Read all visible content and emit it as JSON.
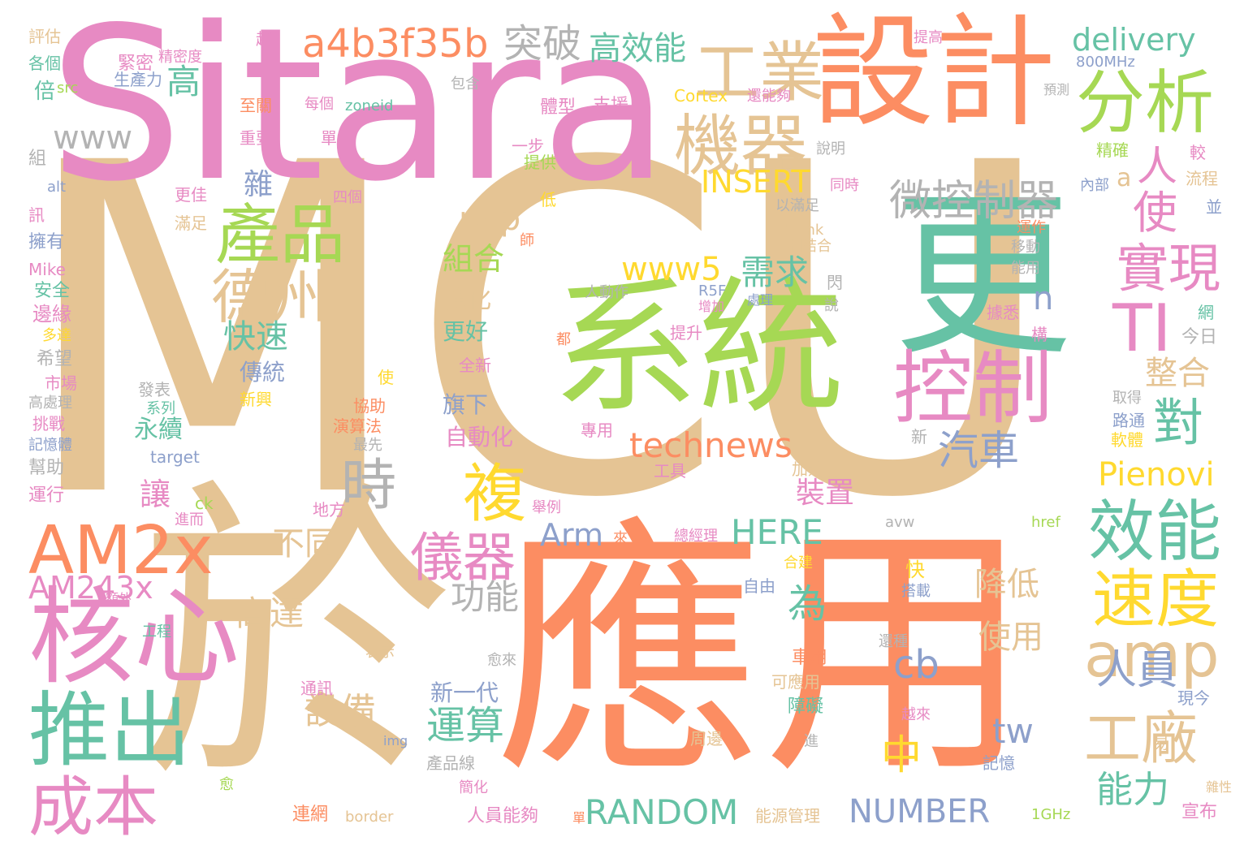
{
  "palette": {
    "tan": "#e5c494",
    "orange": "#fc8d62",
    "pink": "#e78ac3",
    "green": "#a6d854",
    "teal": "#66c2a5",
    "blue": "#8da0cb",
    "yellow": "#ffd92f",
    "gray": "#b3b3b3"
  },
  "words": [
    {
      "text": "MCU",
      "color": "#e5c494"
    },
    {
      "text": "Sitara",
      "color": "#e78ac3"
    },
    {
      "text": "應用",
      "color": "#fc8d62"
    },
    {
      "text": "於",
      "color": "#e5c494"
    },
    {
      "text": "系統",
      "color": "#a6d854"
    },
    {
      "text": "設計",
      "color": "#fc8d62"
    },
    {
      "text": "更",
      "color": "#66c2a5"
    },
    {
      "text": "AM2x",
      "color": "#fc8d62"
    },
    {
      "text": "核心",
      "color": "#e78ac3"
    },
    {
      "text": "推出",
      "color": "#66c2a5"
    },
    {
      "text": "成本",
      "color": "#e78ac3"
    },
    {
      "text": "控制",
      "color": "#e78ac3"
    },
    {
      "text": "分析",
      "color": "#a6d854"
    },
    {
      "text": "效能",
      "color": "#66c2a5"
    },
    {
      "text": "速度",
      "color": "#ffd92f"
    },
    {
      "text": "amp",
      "color": "#e5c494"
    },
    {
      "text": "工業",
      "color": "#e5c494"
    },
    {
      "text": "機器",
      "color": "#e5c494"
    },
    {
      "text": "產品",
      "color": "#a6d854"
    },
    {
      "text": "德州",
      "color": "#e5c494"
    },
    {
      "text": "儀器",
      "color": "#e78ac3"
    },
    {
      "text": "TI",
      "color": "#e78ac3"
    },
    {
      "text": "實現",
      "color": "#e78ac3"
    },
    {
      "text": "複",
      "color": "#ffd92f"
    },
    {
      "text": "時",
      "color": "#b3b3b3"
    },
    {
      "text": "technews",
      "color": "#fc8d62"
    },
    {
      "text": "a4b3f35b",
      "color": "#fc8d62"
    },
    {
      "text": "delivery",
      "color": "#66c2a5"
    },
    {
      "text": "突破",
      "color": "#b3b3b3"
    },
    {
      "text": "高效能",
      "color": "#66c2a5"
    },
    {
      "text": "微控制器",
      "color": "#b3b3b3"
    },
    {
      "text": "汽車",
      "color": "#8da0cb"
    },
    {
      "text": "INSERT",
      "color": "#ffd92f"
    },
    {
      "text": "www",
      "color": "#b3b3b3"
    },
    {
      "text": "www5",
      "color": "#ffd92f"
    },
    {
      "text": "php",
      "color": "#e5c494"
    },
    {
      "text": "需求",
      "color": "#66c2a5"
    },
    {
      "text": "組合",
      "color": "#a6d854"
    },
    {
      "text": "快速",
      "color": "#66c2a5"
    },
    {
      "text": "Pienovi",
      "color": "#ffd92f"
    },
    {
      "text": "RANDOM",
      "color": "#66c2a5"
    },
    {
      "text": "NUMBER",
      "color": "#8da0cb"
    },
    {
      "text": "HERE",
      "color": "#66c2a5"
    },
    {
      "text": "Arm",
      "color": "#8da0cb"
    },
    {
      "text": "AM243x",
      "color": "#e78ac3"
    },
    {
      "text": "cb",
      "color": "#8da0cb"
    },
    {
      "text": "tw",
      "color": "#8da0cb"
    },
    {
      "text": "整合",
      "color": "#e5c494"
    },
    {
      "text": "運算",
      "color": "#66c2a5"
    },
    {
      "text": "降低",
      "color": "#e5c494"
    },
    {
      "text": "使用",
      "color": "#e5c494"
    },
    {
      "text": "能力",
      "color": "#66c2a5"
    },
    {
      "text": "人員",
      "color": "#8da0cb"
    },
    {
      "text": "功能",
      "color": "#b3b3b3"
    },
    {
      "text": "高達",
      "color": "#e5c494"
    },
    {
      "text": "不同",
      "color": "#e5c494"
    },
    {
      "text": "設備",
      "color": "#e5c494"
    },
    {
      "text": "新一代",
      "color": "#8da0cb"
    },
    {
      "text": "裝置",
      "color": "#e78ac3"
    },
    {
      "text": "讓",
      "color": "#e78ac3"
    },
    {
      "text": "傳統",
      "color": "#8da0cb"
    },
    {
      "text": "永續",
      "color": "#66c2a5"
    },
    {
      "text": "自動化",
      "color": "#e78ac3"
    },
    {
      "text": "更好",
      "color": "#66c2a5"
    },
    {
      "text": "強化",
      "color": "#e5c494"
    },
    {
      "text": "旗下",
      "color": "#8da0cb"
    },
    {
      "text": "高",
      "color": "#66c2a5"
    },
    {
      "text": "雜",
      "color": "#8da0cb"
    },
    {
      "text": "中",
      "color": "#ffd92f"
    },
    {
      "text": "為",
      "color": "#66c2a5"
    },
    {
      "text": "對",
      "color": "#66c2a5"
    },
    {
      "text": "使",
      "color": "#e78ac3"
    },
    {
      "text": "a",
      "color": "#e5c494"
    },
    {
      "text": "人",
      "color": "#e78ac3"
    },
    {
      "text": "n",
      "color": "#8da0cb"
    },
    {
      "text": "工廠",
      "color": "#e5c494"
    },
    {
      "text": "評估",
      "color": "#e5c494"
    },
    {
      "text": "各個",
      "color": "#66c2a5"
    },
    {
      "text": "倍",
      "color": "#66c2a5"
    },
    {
      "text": "src",
      "color": "#a6d854"
    },
    {
      "text": "組",
      "color": "#b3b3b3"
    },
    {
      "text": "alt",
      "color": "#8da0cb"
    },
    {
      "text": "訊",
      "color": "#e78ac3"
    },
    {
      "text": "擁有",
      "color": "#8da0cb"
    },
    {
      "text": "Mike",
      "color": "#e78ac3"
    },
    {
      "text": "安全",
      "color": "#66c2a5"
    },
    {
      "text": "邊緣",
      "color": "#e78ac3"
    },
    {
      "text": "多達",
      "color": "#ffd92f"
    },
    {
      "text": "希望",
      "color": "#b3b3b3"
    },
    {
      "text": "市場",
      "color": "#e78ac3"
    },
    {
      "text": "高處理",
      "color": "#b3b3b3"
    },
    {
      "text": "挑戰",
      "color": "#e78ac3"
    },
    {
      "text": "記憶體",
      "color": "#8da0cb"
    },
    {
      "text": "幫助",
      "color": "#b3b3b3"
    },
    {
      "text": "運行",
      "color": "#e78ac3"
    },
    {
      "text": "越",
      "color": "#e78ac3"
    },
    {
      "text": "緊密",
      "color": "#e78ac3"
    },
    {
      "text": "精密度",
      "color": "#e78ac3"
    },
    {
      "text": "生產力",
      "color": "#8da0cb"
    },
    {
      "text": "每個",
      "color": "#e78ac3"
    },
    {
      "text": "zoneid",
      "color": "#66c2a5"
    },
    {
      "text": "至關",
      "color": "#fc8d62"
    },
    {
      "text": "重要",
      "color": "#e78ac3"
    },
    {
      "text": "單",
      "color": "#e78ac3"
    },
    {
      "text": "更佳",
      "color": "#e78ac3"
    },
    {
      "text": "四個",
      "color": "#e78ac3"
    },
    {
      "text": "滿足",
      "color": "#e5c494"
    },
    {
      "text": "包含",
      "color": "#b3b3b3"
    },
    {
      "text": "體型",
      "color": "#e78ac3"
    },
    {
      "text": "支援",
      "color": "#e78ac3"
    },
    {
      "text": "Cortex",
      "color": "#ffd92f"
    },
    {
      "text": "還能夠",
      "color": "#e78ac3"
    },
    {
      "text": "一步",
      "color": "#e78ac3"
    },
    {
      "text": "提供",
      "color": "#a6d854"
    },
    {
      "text": "低",
      "color": "#ffd92f"
    },
    {
      "text": "說明",
      "color": "#b3b3b3"
    },
    {
      "text": "同時",
      "color": "#e78ac3"
    },
    {
      "text": "以滿足",
      "color": "#b3b3b3"
    },
    {
      "text": "blank",
      "color": "#e5c494"
    },
    {
      "text": "相結合",
      "color": "#e5c494"
    },
    {
      "text": "閃",
      "color": "#b3b3b3"
    },
    {
      "text": "人動作",
      "color": "#b3b3b3"
    },
    {
      "text": "R5F",
      "color": "#8da0cb"
    },
    {
      "text": "處理",
      "color": "#8da0cb"
    },
    {
      "text": "增加",
      "color": "#e78ac3"
    },
    {
      "text": "說",
      "color": "#b3b3b3"
    },
    {
      "text": "師",
      "color": "#fc8d62"
    },
    {
      "text": "提升",
      "color": "#e78ac3"
    },
    {
      "text": "都",
      "color": "#fc8d62"
    },
    {
      "text": "全新",
      "color": "#e78ac3"
    },
    {
      "text": "使",
      "color": "#ffd92f"
    },
    {
      "text": "發表",
      "color": "#b3b3b3"
    },
    {
      "text": "系列",
      "color": "#66c2a5"
    },
    {
      "text": "新興",
      "color": "#ffd92f"
    },
    {
      "text": "協助",
      "color": "#fc8d62"
    },
    {
      "text": "演算法",
      "color": "#fc8d62"
    },
    {
      "text": "最先",
      "color": "#b3b3b3"
    },
    {
      "text": "target",
      "color": "#8da0cb"
    },
    {
      "text": "ck",
      "color": "#a6d854"
    },
    {
      "text": "地方",
      "color": "#e78ac3"
    },
    {
      "text": "進而",
      "color": "#e78ac3"
    },
    {
      "text": "舉例",
      "color": "#e78ac3"
    },
    {
      "text": "專用",
      "color": "#e78ac3"
    },
    {
      "text": "工具",
      "color": "#e78ac3"
    },
    {
      "text": "加速器",
      "color": "#e5c494"
    },
    {
      "text": "新",
      "color": "#b3b3b3"
    },
    {
      "text": "來",
      "color": "#fc8d62"
    },
    {
      "text": "總經理",
      "color": "#e78ac3"
    },
    {
      "text": "合建",
      "color": "#ffd92f"
    },
    {
      "text": "自由",
      "color": "#8da0cb"
    },
    {
      "text": "快",
      "color": "#ffd92f"
    },
    {
      "text": "搭載",
      "color": "#8da0cb"
    },
    {
      "text": "avw",
      "color": "#b3b3b3"
    },
    {
      "text": "href",
      "color": "#a6d854"
    },
    {
      "text": "提高",
      "color": "#e78ac3"
    },
    {
      "text": "800MHz",
      "color": "#8da0cb"
    },
    {
      "text": "預測",
      "color": "#b3b3b3"
    },
    {
      "text": "精確",
      "color": "#a6d854"
    },
    {
      "text": "較",
      "color": "#e78ac3"
    },
    {
      "text": "內部",
      "color": "#8da0cb"
    },
    {
      "text": "流程",
      "color": "#e5c494"
    },
    {
      "text": "並",
      "color": "#8da0cb"
    },
    {
      "text": "運作",
      "color": "#fc8d62"
    },
    {
      "text": "移動",
      "color": "#b3b3b3"
    },
    {
      "text": "能用",
      "color": "#b3b3b3"
    },
    {
      "text": "據悉",
      "color": "#e78ac3"
    },
    {
      "text": "構",
      "color": "#e78ac3"
    },
    {
      "text": "網",
      "color": "#66c2a5"
    },
    {
      "text": "今日",
      "color": "#b3b3b3"
    },
    {
      "text": "取得",
      "color": "#b3b3b3"
    },
    {
      "text": "路通",
      "color": "#8da0cb"
    },
    {
      "text": "軟體",
      "color": "#ffd92f"
    },
    {
      "text": "額外",
      "color": "#e78ac3"
    },
    {
      "text": "工程",
      "color": "#66c2a5"
    },
    {
      "text": "表示",
      "color": "#e5c494"
    },
    {
      "text": "愈來",
      "color": "#b3b3b3"
    },
    {
      "text": "通訊",
      "color": "#e78ac3"
    },
    {
      "text": "車用",
      "color": "#fc8d62"
    },
    {
      "text": "可應用",
      "color": "#e5c494"
    },
    {
      "text": "障礙",
      "color": "#66c2a5"
    },
    {
      "text": "周邊",
      "color": "#e5c494"
    },
    {
      "text": "進",
      "color": "#b3b3b3"
    },
    {
      "text": "還種",
      "color": "#b3b3b3"
    },
    {
      "text": "越來",
      "color": "#e78ac3"
    },
    {
      "text": "現今",
      "color": "#8da0cb"
    },
    {
      "text": "易",
      "color": "#e5c494"
    },
    {
      "text": "記憶",
      "color": "#8da0cb"
    },
    {
      "text": "雜性",
      "color": "#e5c494"
    },
    {
      "text": "宣布",
      "color": "#e78ac3"
    },
    {
      "text": "1GHz",
      "color": "#a6d854"
    },
    {
      "text": "能源管理",
      "color": "#e5c494"
    },
    {
      "text": "人員能夠",
      "color": "#e78ac3"
    },
    {
      "text": "border",
      "color": "#e5c494"
    },
    {
      "text": "連網",
      "color": "#fc8d62"
    },
    {
      "text": "產品線",
      "color": "#b3b3b3"
    },
    {
      "text": "簡化",
      "color": "#e78ac3"
    },
    {
      "text": "愈",
      "color": "#a6d854"
    },
    {
      "text": "img",
      "color": "#8da0cb"
    },
    {
      "text": "單",
      "color": "#fc8d62"
    }
  ]
}
